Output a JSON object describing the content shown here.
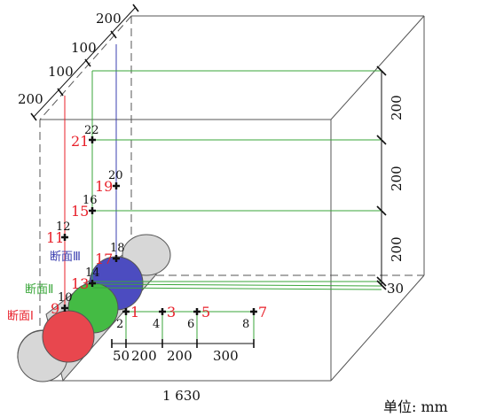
{
  "dimensions": {
    "top_left": [
      "200",
      "100",
      "100",
      "200"
    ],
    "right": [
      "200",
      "200",
      "200",
      "30"
    ],
    "bottom": [
      "50",
      "200",
      "200",
      "300"
    ],
    "length": "1 630"
  },
  "sections": {
    "s1": "断面Ⅰ",
    "s2": "断面Ⅱ",
    "s3": "断面Ⅲ"
  },
  "points": {
    "p1": "1",
    "p2": "2",
    "p3": "3",
    "p4": "4",
    "p5": "5",
    "p6": "6",
    "p7": "7",
    "p8": "8",
    "p9": "9",
    "p10": "10",
    "p11": "11",
    "p12": "12",
    "p13": "13",
    "p14": "14",
    "p15": "15",
    "p16": "16",
    "p17": "17",
    "p18": "18",
    "p19": "19",
    "p20": "20",
    "p21": "21",
    "p22": "22"
  },
  "unit": "单位: mm",
  "colors": {
    "red": "#e8202a",
    "green": "#3aa63a",
    "blue": "#3b3fb0",
    "black": "#111111"
  }
}
